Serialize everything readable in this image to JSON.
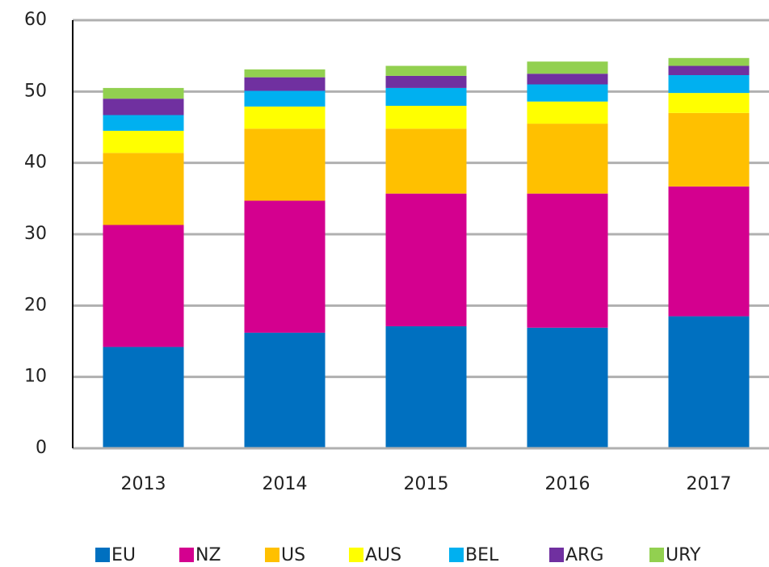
{
  "chart_data": {
    "type": "stacked_bar",
    "categories": [
      "2013",
      "2014",
      "2015",
      "2016",
      "2017"
    ],
    "series": [
      {
        "name": "EU",
        "color": "#0070c0",
        "values": [
          14.2,
          16.2,
          17.1,
          16.9,
          18.5
        ]
      },
      {
        "name": "NZ",
        "color": "#d4008f",
        "values": [
          17.1,
          18.5,
          18.6,
          18.8,
          18.2
        ]
      },
      {
        "name": "US",
        "color": "#ffc000",
        "values": [
          10.1,
          10.1,
          9.1,
          9.8,
          10.3
        ]
      },
      {
        "name": "AUS",
        "color": "#ffff00",
        "values": [
          3.1,
          3.1,
          3.2,
          3.1,
          2.8
        ]
      },
      {
        "name": "BEL",
        "color": "#00b0f0",
        "values": [
          2.2,
          2.2,
          2.5,
          2.4,
          2.5
        ]
      },
      {
        "name": "ARG",
        "color": "#7030a0",
        "values": [
          2.3,
          1.9,
          1.7,
          1.5,
          1.3
        ]
      },
      {
        "name": "URY",
        "color": "#92d050",
        "values": [
          1.5,
          1.1,
          1.4,
          1.7,
          1.1
        ]
      }
    ],
    "ylim": [
      0,
      60
    ],
    "yticks": [
      0,
      10,
      20,
      30,
      40,
      50,
      60
    ],
    "grid": true,
    "legend": "bottom"
  }
}
